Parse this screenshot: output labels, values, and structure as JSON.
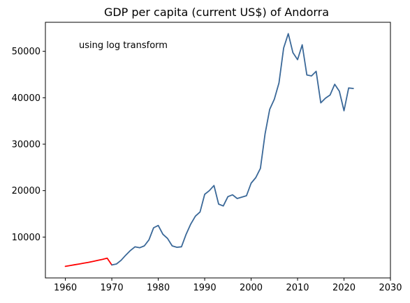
{
  "chart_data": {
    "type": "line",
    "title": "GDP per capita (current US$) of Andorra",
    "annotation": "using log transform",
    "xlabel": "",
    "ylabel": "",
    "xlim": [
      1955.7,
      2030
    ],
    "ylim": [
      1200,
      56250
    ],
    "x_ticks": [
      1960,
      1970,
      1980,
      1990,
      2000,
      2010,
      2020,
      2030
    ],
    "y_ticks": [
      10000,
      20000,
      30000,
      40000,
      50000
    ],
    "grid": false,
    "series": [
      {
        "color": "#ff0000",
        "x": [
          1960,
          1961,
          1962,
          1963,
          1964,
          1965,
          1966,
          1967,
          1968,
          1969,
          1970
        ],
        "y": [
          3700,
          3860,
          4040,
          4200,
          4380,
          4560,
          4760,
          4980,
          5200,
          5450,
          4000
        ]
      },
      {
        "color": "#3a6898",
        "x": [
          1970,
          1971,
          1972,
          1973,
          1974,
          1975,
          1976,
          1977,
          1978,
          1979,
          1980,
          1981,
          1982,
          1983,
          1984,
          1985,
          1986,
          1987,
          1988,
          1989,
          1990,
          1991,
          1992,
          1993,
          1994,
          1995,
          1996,
          1997,
          1998,
          1999,
          2000,
          2001,
          2002,
          2003,
          2004,
          2005,
          2006,
          2007,
          2008,
          2009,
          2010,
          2011,
          2012,
          2013,
          2014,
          2015,
          2016,
          2017,
          2018,
          2019,
          2020,
          2021,
          2022
        ],
        "y": [
          4000,
          4200,
          5000,
          6100,
          7100,
          7900,
          7700,
          8100,
          9400,
          12000,
          12500,
          10600,
          9700,
          8100,
          7800,
          7900,
          10600,
          12800,
          14500,
          15400,
          19200,
          20000,
          21100,
          17100,
          16700,
          18700,
          19100,
          18300,
          18600,
          18900,
          21600,
          22800,
          24800,
          32200,
          37500,
          39700,
          43200,
          50700,
          53800,
          49700,
          48200,
          51400,
          44900,
          44700,
          45700,
          38900,
          39900,
          40600,
          42900,
          41400,
          37200,
          42100,
          42000
        ]
      }
    ]
  }
}
